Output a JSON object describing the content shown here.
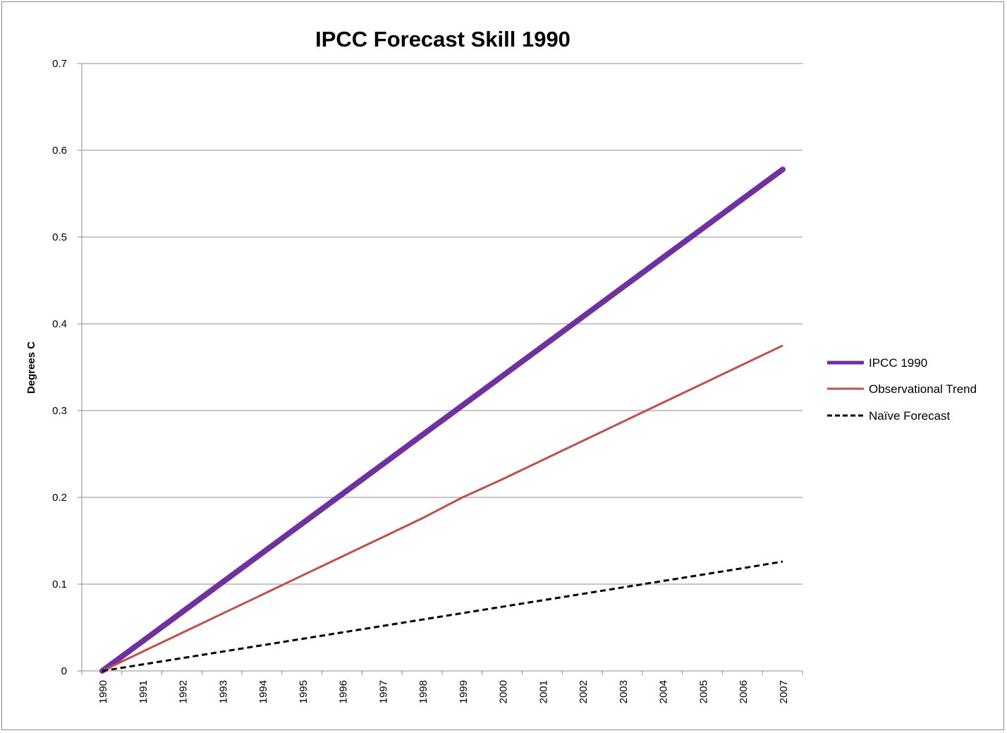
{
  "chart_data": {
    "type": "line",
    "title": "IPCC Forecast Skill 1990",
    "xlabel": "",
    "ylabel": "Degrees C",
    "x": [
      "1990",
      "1991",
      "1992",
      "1993",
      "1994",
      "1995",
      "1996",
      "1997",
      "1998",
      "1999",
      "2000",
      "2001",
      "2002",
      "2003",
      "2004",
      "2005",
      "2006",
      "2007"
    ],
    "ylim": [
      0,
      0.7
    ],
    "yticks": [
      "0",
      "0.1",
      "0.2",
      "0.3",
      "0.4",
      "0.5",
      "0.6",
      "0.7"
    ],
    "grid": "horizontal",
    "legend_position": "right",
    "series": [
      {
        "name": "IPCC 1990",
        "color": "#7030A0",
        "style": "solid-thick",
        "values": [
          0,
          0.034,
          0.068,
          0.102,
          0.136,
          0.17,
          0.204,
          0.238,
          0.272,
          0.306,
          0.34,
          0.374,
          0.408,
          0.442,
          0.476,
          0.51,
          0.544,
          0.578
        ]
      },
      {
        "name": "Observational Trend",
        "color": "#C0504D",
        "style": "solid",
        "values": [
          0,
          0.022,
          0.044,
          0.066,
          0.088,
          0.11,
          0.132,
          0.154,
          0.176,
          0.2,
          0.221,
          0.243,
          0.265,
          0.287,
          0.309,
          0.331,
          0.353,
          0.375
        ]
      },
      {
        "name": "Naïve Forecast",
        "color": "#000000",
        "style": "dashed",
        "values": [
          0,
          0.0074,
          0.0148,
          0.0222,
          0.0296,
          0.037,
          0.0444,
          0.0518,
          0.0592,
          0.0666,
          0.074,
          0.0814,
          0.0888,
          0.0962,
          0.1036,
          0.111,
          0.1184,
          0.126
        ]
      }
    ]
  }
}
